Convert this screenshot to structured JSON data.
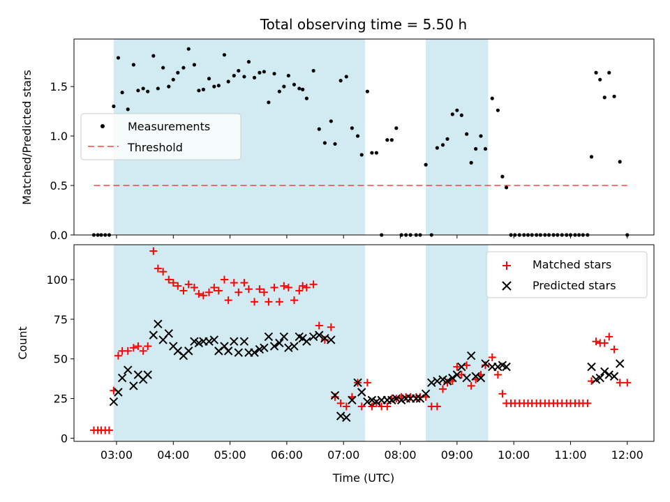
{
  "title": "Total observing time = 5.50 h",
  "colors": {
    "shade": "#add8e6",
    "threshold": "#ff0000",
    "matched": "#ff0000",
    "predicted": "#000000",
    "measurements": "#000000"
  },
  "chart_data": [
    {
      "type": "scatter",
      "ylabel": "Matched/Predicted stars",
      "xlim": [
        2.25,
        12.47
      ],
      "ylim": [
        0,
        1.98
      ],
      "yticks": [
        0,
        0.5,
        1.0,
        1.5
      ],
      "ytick_labels": [
        "0.0",
        "0.5",
        "1.0",
        "1.5"
      ],
      "legend": {
        "placement": "center-left",
        "entries": [
          "Measurements",
          "Threshold"
        ]
      },
      "shaded_spans": [
        [
          2.95,
          7.38
        ],
        [
          8.45,
          9.55
        ]
      ],
      "threshold": {
        "name": "Threshold",
        "x": [
          2.6,
          12.0
        ],
        "y": 0.5
      },
      "series": [
        {
          "name": "Measurements",
          "x": [
            2.6,
            2.67,
            2.73,
            2.8,
            2.87,
            2.95,
            3.03,
            3.1,
            3.2,
            3.3,
            3.38,
            3.47,
            3.55,
            3.65,
            3.73,
            3.82,
            3.92,
            4.0,
            4.08,
            4.18,
            4.27,
            4.37,
            4.45,
            4.53,
            4.63,
            4.72,
            4.8,
            4.9,
            4.97,
            5.07,
            5.15,
            5.25,
            5.33,
            5.43,
            5.52,
            5.6,
            5.68,
            5.78,
            5.87,
            5.95,
            6.03,
            6.13,
            6.22,
            6.28,
            6.35,
            6.47,
            6.57,
            6.67,
            6.78,
            6.85,
            6.95,
            7.05,
            7.15,
            7.25,
            7.32,
            7.42,
            7.5,
            7.58,
            7.67,
            7.77,
            7.85,
            7.93,
            8.02,
            8.1,
            8.18,
            8.28,
            8.35,
            8.45,
            8.55,
            8.65,
            8.75,
            8.83,
            8.92,
            9.0,
            9.08,
            9.17,
            9.25,
            9.33,
            9.42,
            9.5,
            9.62,
            9.72,
            9.8,
            9.87,
            9.95,
            10.02,
            10.1,
            10.18,
            10.25,
            10.32,
            10.4,
            10.47,
            10.55,
            10.62,
            10.7,
            10.77,
            10.85,
            10.93,
            11.0,
            11.08,
            11.15,
            11.22,
            11.3,
            11.37,
            11.45,
            11.52,
            11.6,
            11.68,
            11.77,
            11.87,
            12.0
          ],
          "y": [
            0,
            0,
            0,
            0,
            0,
            1.3,
            1.79,
            1.44,
            1.27,
            1.72,
            1.46,
            1.48,
            1.45,
            1.81,
            1.48,
            1.69,
            1.5,
            1.57,
            1.64,
            1.69,
            1.88,
            1.72,
            1.46,
            1.47,
            1.58,
            1.5,
            1.51,
            1.82,
            1.55,
            1.61,
            1.66,
            1.6,
            1.75,
            1.59,
            1.64,
            1.65,
            1.34,
            1.63,
            1.45,
            1.5,
            1.61,
            1.52,
            1.48,
            1.47,
            1.38,
            1.66,
            1.07,
            0.93,
            1.15,
            0.92,
            1.56,
            1.6,
            1.08,
            1.0,
            0.81,
            1.45,
            0.83,
            0.83,
            0,
            0.96,
            0.96,
            1.08,
            0,
            0,
            0,
            0,
            0,
            0.71,
            0,
            0.88,
            0.91,
            0.97,
            1.22,
            1.26,
            1.21,
            1.02,
            0.73,
            0.87,
            1.0,
            0.87,
            1.38,
            1.26,
            0.59,
            0.48,
            0,
            0,
            0,
            0,
            0,
            0,
            0,
            0,
            0,
            0,
            0,
            0,
            0,
            0,
            0,
            0,
            0,
            0,
            0,
            0.79,
            1.64,
            1.57,
            1.39,
            1.64,
            1.4,
            0.74,
            0
          ]
        }
      ]
    },
    {
      "type": "scatter",
      "xlabel": "Time (UTC)",
      "ylabel": "Count",
      "xlim": [
        2.25,
        12.47
      ],
      "ylim": [
        -2,
        122
      ],
      "yticks": [
        0,
        25,
        50,
        75,
        100
      ],
      "ytick_labels": [
        "0",
        "25",
        "50",
        "75",
        "100"
      ],
      "xticks": [
        3,
        4,
        5,
        6,
        7,
        8,
        9,
        10,
        11,
        12
      ],
      "xtick_labels": [
        "03:00",
        "04:00",
        "05:00",
        "06:00",
        "07:00",
        "08:00",
        "09:00",
        "10:00",
        "11:00",
        "12:00"
      ],
      "legend": {
        "placement": "top-right",
        "entries": [
          "Matched stars",
          "Predicted stars"
        ]
      },
      "shaded_spans": [
        [
          2.95,
          7.38
        ],
        [
          8.45,
          9.55
        ]
      ],
      "series": [
        {
          "name": "Matched stars",
          "x": [
            2.6,
            2.67,
            2.73,
            2.8,
            2.87,
            2.95,
            3.03,
            3.1,
            3.2,
            3.3,
            3.38,
            3.47,
            3.55,
            3.65,
            3.73,
            3.82,
            3.92,
            4.0,
            4.08,
            4.18,
            4.27,
            4.37,
            4.45,
            4.53,
            4.63,
            4.72,
            4.8,
            4.9,
            4.97,
            5.07,
            5.15,
            5.25,
            5.33,
            5.43,
            5.52,
            5.6,
            5.68,
            5.78,
            5.87,
            5.95,
            6.03,
            6.13,
            6.22,
            6.28,
            6.35,
            6.47,
            6.57,
            6.67,
            6.78,
            6.85,
            6.95,
            7.05,
            7.15,
            7.25,
            7.32,
            7.42,
            7.5,
            7.58,
            7.67,
            7.77,
            7.85,
            7.93,
            8.02,
            8.1,
            8.18,
            8.28,
            8.35,
            8.45,
            8.55,
            8.65,
            8.75,
            8.83,
            8.92,
            9.0,
            9.08,
            9.17,
            9.25,
            9.33,
            9.42,
            9.5,
            9.62,
            9.72,
            9.8,
            9.87,
            9.95,
            10.02,
            10.1,
            10.18,
            10.25,
            10.32,
            10.4,
            10.47,
            10.55,
            10.62,
            10.7,
            10.77,
            10.85,
            10.93,
            11.0,
            11.08,
            11.15,
            11.22,
            11.3,
            11.37,
            11.45,
            11.52,
            11.6,
            11.68,
            11.77,
            11.87,
            12.0
          ],
          "y": [
            5,
            5,
            5,
            5,
            5,
            30,
            52,
            55,
            55,
            57,
            58,
            55,
            58,
            118,
            107,
            105,
            100,
            98,
            96,
            93,
            97,
            95,
            91,
            90,
            92,
            95,
            93,
            100,
            87,
            98,
            92,
            98,
            94,
            86,
            94,
            92,
            86,
            95,
            86,
            96,
            95,
            87,
            93,
            96,
            95,
            97,
            71,
            62,
            70,
            26,
            22,
            20,
            26,
            35,
            20,
            35,
            20,
            22,
            20,
            20,
            25,
            25,
            26,
            26,
            26,
            26,
            26,
            26,
            20,
            20,
            31,
            35,
            36,
            45,
            40,
            46,
            33,
            37,
            40,
            46,
            51,
            40,
            28,
            22,
            22,
            22,
            22,
            22,
            22,
            22,
            22,
            22,
            22,
            22,
            22,
            22,
            22,
            22,
            22,
            22,
            22,
            22,
            22,
            36,
            61,
            60,
            60,
            64,
            56,
            35,
            35
          ]
        },
        {
          "name": "Predicted stars",
          "x": [
            2.95,
            3.03,
            3.1,
            3.2,
            3.3,
            3.38,
            3.47,
            3.55,
            3.65,
            3.73,
            3.82,
            3.92,
            4.0,
            4.08,
            4.18,
            4.27,
            4.37,
            4.45,
            4.53,
            4.63,
            4.72,
            4.8,
            4.9,
            4.97,
            5.07,
            5.15,
            5.25,
            5.33,
            5.43,
            5.52,
            5.6,
            5.68,
            5.78,
            5.87,
            5.95,
            6.03,
            6.13,
            6.22,
            6.28,
            6.35,
            6.47,
            6.57,
            6.67,
            6.78,
            6.85,
            6.95,
            7.05,
            7.15,
            7.25,
            7.32,
            7.42,
            7.5,
            7.58,
            7.67,
            7.77,
            7.85,
            7.93,
            8.02,
            8.1,
            8.18,
            8.28,
            8.35,
            8.45,
            8.55,
            8.65,
            8.75,
            8.83,
            8.92,
            9.0,
            9.08,
            9.17,
            9.25,
            9.33,
            9.42,
            9.5,
            9.62,
            9.72,
            9.8,
            9.87,
            11.37,
            11.45,
            11.52,
            11.6,
            11.68,
            11.77,
            11.87
          ],
          "y": [
            23,
            29,
            38,
            43,
            33,
            40,
            37,
            40,
            65,
            72,
            62,
            66,
            58,
            55,
            52,
            55,
            61,
            60,
            61,
            61,
            62,
            55,
            58,
            55,
            61,
            54,
            61,
            54,
            54,
            56,
            57,
            64,
            58,
            60,
            64,
            57,
            58,
            64,
            63,
            61,
            64,
            65,
            63,
            62,
            27,
            14,
            13,
            24,
            35,
            29,
            23,
            24,
            23,
            24,
            24,
            24,
            25,
            24,
            25,
            25,
            25,
            25,
            28,
            35,
            36,
            37,
            36,
            38,
            40,
            45,
            38,
            52,
            39,
            38,
            47,
            45,
            45,
            46,
            45,
            45,
            37,
            38,
            42,
            40,
            39,
            47
          ]
        }
      ]
    }
  ]
}
